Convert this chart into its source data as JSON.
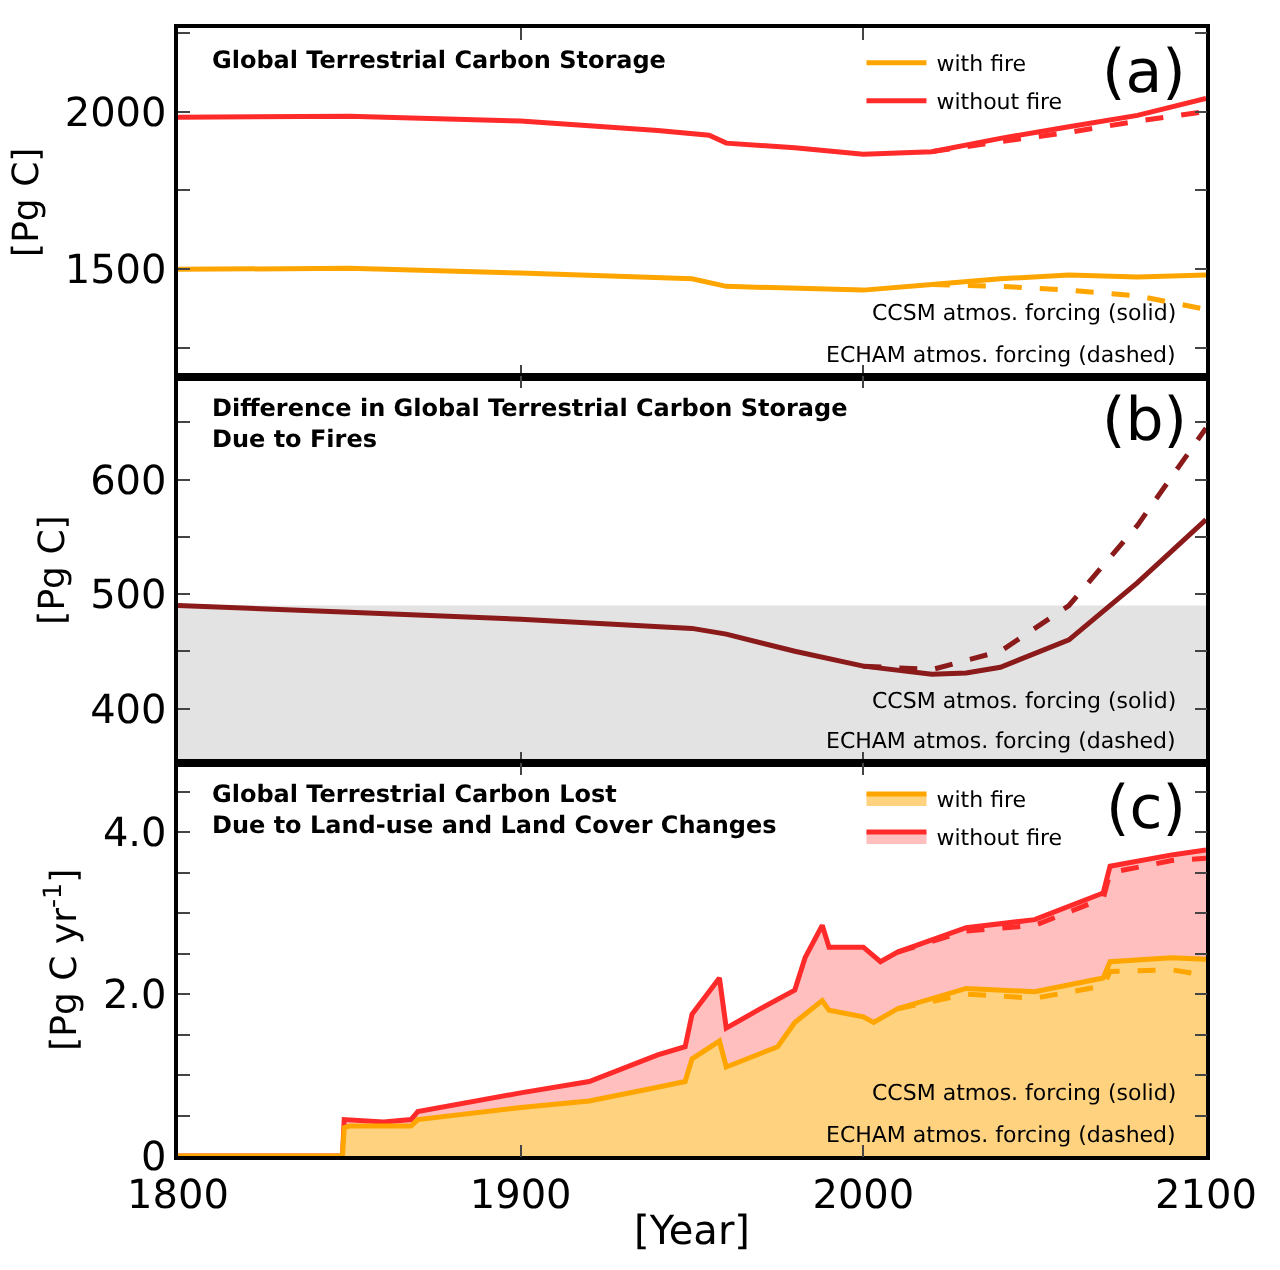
{
  "chart_data": [
    {
      "type": "line",
      "title": "Global Terrestrial Carbon Storage",
      "ylabel": "[Pg C]",
      "xlim": [
        1800,
        2100
      ],
      "xticks": [
        1800,
        1900,
        2000,
        2100
      ],
      "ylim": [
        1160,
        2265
      ],
      "yticks": [
        {
          "value": 1250,
          "label": null
        },
        1500,
        {
          "value": 1750,
          "label": null
        },
        2000,
        {
          "value": 2250,
          "label": null
        }
      ],
      "tick_labels": "y",
      "legend": "top right",
      "grid": false,
      "annotations": [
        "(a)",
        "CCSM atmos. forcing (solid)",
        "ECHAM atmos. forcing (dashed)"
      ],
      "series": [
        {
          "name": "with fire",
          "color": "#ffa500",
          "x": [
            1800,
            1850,
            1900,
            1950,
            1960,
            2000,
            2020,
            2040,
            2060,
            2080,
            2100
          ],
          "values": [
            1500,
            1503,
            1488,
            1470,
            1446,
            1434,
            1452,
            1470,
            1482,
            1476,
            1482
          ]
        },
        {
          "name": "without fire",
          "color": "#ff2a2a",
          "x": [
            1800,
            1850,
            1900,
            1940,
            1955,
            1960,
            1980,
            2000,
            2020,
            2040,
            2060,
            2080,
            2100
          ],
          "values": [
            1982,
            1985,
            1970,
            1940,
            1925,
            1900,
            1885,
            1865,
            1873,
            1915,
            1952,
            1988,
            2042
          ]
        },
        {
          "color": "#ffa500",
          "line_style": "dashed",
          "x": [
            2020,
            2040,
            2060,
            2080,
            2100
          ],
          "values": [
            1452,
            1446,
            1434,
            1416,
            1373
          ]
        },
        {
          "color": "#ff2a2a",
          "line_style": "dashed",
          "x": [
            2020,
            2040,
            2060,
            2080,
            2100
          ],
          "values": [
            1873,
            1905,
            1934,
            1970,
            2000
          ]
        }
      ]
    },
    {
      "type": "line",
      "title": "Difference in Global Terrestrial Carbon Storage\nDue to Fires",
      "ylabel": "[Pg C]",
      "xlim": [
        1800,
        2100
      ],
      "xticks": [
        1800,
        1900,
        2000,
        2100
      ],
      "ylim": [
        352,
        690
      ],
      "yticks": [
        400,
        {
          "value": 450,
          "label": null
        },
        500,
        {
          "value": 550,
          "label": null
        },
        600,
        {
          "value": 650,
          "label": null
        }
      ],
      "tick_labels": "y",
      "grid": false,
      "bands": [
        {
          "axis": "y",
          "from": 352,
          "to": 490,
          "color": "#e3e3e3"
        }
      ],
      "annotations": [
        "(b)",
        "CCSM atmos. forcing (solid)",
        "ECHAM atmos. forcing (dashed)"
      ],
      "series": [
        {
          "color": "#8b1a1a",
          "x": [
            1800,
            1850,
            1900,
            1950,
            1960,
            1980,
            2000,
            2020,
            2030,
            2040,
            2060,
            2080,
            2100
          ],
          "values": [
            490,
            484,
            478,
            470,
            465,
            450,
            437,
            430,
            431,
            436,
            460,
            510,
            565
          ]
        },
        {
          "color": "#8b1a1a",
          "line_style": "dashed",
          "x": [
            2000,
            2020,
            2040,
            2060,
            2080,
            2100
          ],
          "values": [
            437,
            434,
            450,
            490,
            560,
            645
          ]
        }
      ]
    },
    {
      "type": "area",
      "title": "Global Terrestrial Carbon Lost\nDue to Land-use and Land Cover Changes",
      "xlabel": "[Year]",
      "ylabel": "[Pg C yr$^{-1}$]",
      "xlim": [
        1800,
        2100
      ],
      "xticks": [
        1800,
        1900,
        2000,
        2100
      ],
      "ylim": [
        0,
        4.85
      ],
      "yticks": [
        0,
        {
          "value": 0.5,
          "label": null
        },
        {
          "value": 1,
          "label": null
        },
        {
          "value": 1.5,
          "label": null
        },
        {
          "value": 2,
          "label": "2.0"
        },
        {
          "value": 2.5,
          "label": null
        },
        {
          "value": 3,
          "label": null
        },
        {
          "value": 3.5,
          "label": null
        },
        {
          "value": 4,
          "label": "4.0"
        },
        {
          "value": 4.5,
          "label": null
        }
      ],
      "legend": "top right",
      "grid": false,
      "annotations": [
        "(c)",
        "CCSM atmos. forcing (solid)",
        "ECHAM atmos. forcing (dashed)"
      ],
      "series": [
        {
          "name": "with fire",
          "color": "#ffa500",
          "x": [
            1800,
            1848,
            1848.5,
            1850,
            1868,
            1870,
            1900,
            1920,
            1940,
            1948,
            1950,
            1958,
            1960,
            1975,
            1980,
            1988,
            1990,
            2000,
            2003,
            2010,
            2030,
            2050,
            2070,
            2072,
            2090,
            2100
          ],
          "values": [
            0,
            0,
            0.35,
            0.37,
            0.37,
            0.45,
            0.6,
            0.68,
            0.85,
            0.92,
            1.2,
            1.42,
            1.1,
            1.35,
            1.65,
            1.92,
            1.8,
            1.72,
            1.65,
            1.82,
            2.07,
            2.03,
            2.2,
            2.4,
            2.45,
            2.43
          ]
        },
        {
          "name": "without fire",
          "color": "#ff2a2a",
          "x": [
            1800,
            1848,
            1848.5,
            1860,
            1868,
            1870,
            1900,
            1920,
            1940,
            1948,
            1950,
            1958,
            1960,
            1970,
            1980,
            1983,
            1988,
            1990,
            2000,
            2005,
            2010,
            2030,
            2050,
            2070,
            2072,
            2090,
            2100
          ],
          "values": [
            0,
            0,
            0.45,
            0.42,
            0.45,
            0.55,
            0.78,
            0.92,
            1.25,
            1.35,
            1.75,
            2.2,
            1.58,
            1.82,
            2.05,
            2.45,
            2.85,
            2.58,
            2.58,
            2.4,
            2.52,
            2.82,
            2.92,
            3.25,
            3.58,
            3.72,
            3.78
          ]
        },
        {
          "type": "line",
          "color": "#ffa500",
          "line_style": "dashed",
          "x": [
            2010,
            2030,
            2050,
            2070,
            2072,
            2090,
            2100
          ],
          "values": [
            1.82,
            2.0,
            1.95,
            2.1,
            2.28,
            2.3,
            2.23
          ]
        },
        {
          "type": "line",
          "color": "#ff2a2a",
          "line_style": "dashed",
          "x": [
            2010,
            2030,
            2050,
            2070,
            2072,
            2090,
            2100
          ],
          "values": [
            2.52,
            2.78,
            2.85,
            3.18,
            3.5,
            3.65,
            3.68
          ]
        }
      ]
    }
  ]
}
